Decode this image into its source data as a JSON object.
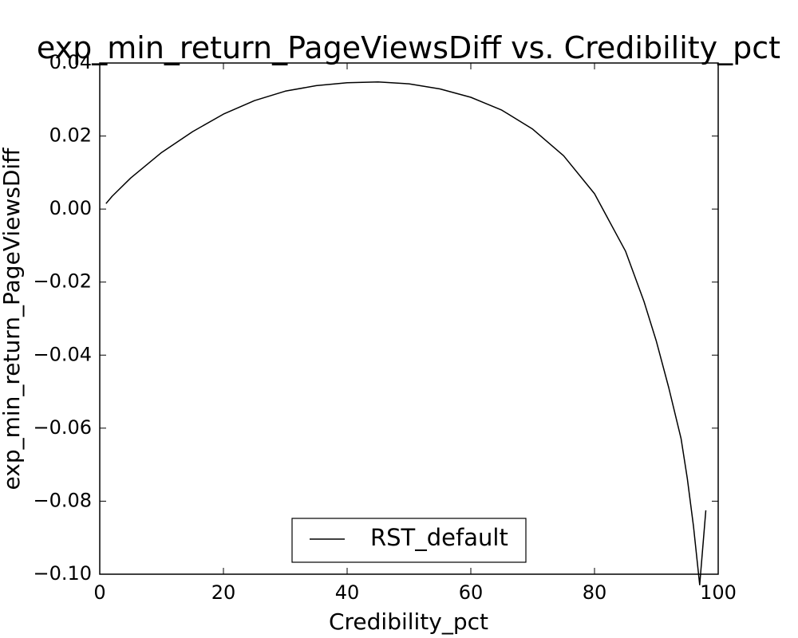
{
  "chart_data": {
    "type": "line",
    "title": "exp_min_return_PageViewsDiff vs. Credibility_pct",
    "xlabel": "Credibility_pct",
    "ylabel": "exp_min_return_PageViewsDiff",
    "xlim": [
      0,
      100
    ],
    "ylim": [
      -0.1,
      0.04
    ],
    "xticks": [
      0,
      20,
      40,
      60,
      80,
      100
    ],
    "yticks": [
      -0.1,
      -0.08,
      -0.06,
      -0.04,
      -0.02,
      0.0,
      0.02,
      0.04
    ],
    "xtick_labels": [
      "0",
      "20",
      "40",
      "60",
      "80",
      "100"
    ],
    "ytick_labels": [
      "−0.10",
      "−0.08",
      "−0.06",
      "−0.04",
      "−0.02",
      "0.00",
      "0.02",
      "0.04"
    ],
    "grid": false,
    "legend": "lower-center",
    "series": [
      {
        "name": "RST_default",
        "color": "#000000",
        "x": [
          1,
          2,
          5,
          10,
          15,
          20,
          25,
          30,
          35,
          40,
          45,
          50,
          55,
          60,
          65,
          70,
          75,
          80,
          85,
          88,
          90,
          92,
          94,
          95,
          96,
          97,
          98
        ],
        "y": [
          0.0015,
          0.0035,
          0.0085,
          0.0155,
          0.0212,
          0.026,
          0.0297,
          0.0323,
          0.0338,
          0.0346,
          0.0348,
          0.0343,
          0.0329,
          0.0306,
          0.0271,
          0.0219,
          0.0146,
          0.0042,
          -0.0115,
          -0.0253,
          -0.0362,
          -0.0489,
          -0.0629,
          -0.0738,
          -0.0868,
          -0.1029,
          -0.0825
        ]
      }
    ]
  }
}
